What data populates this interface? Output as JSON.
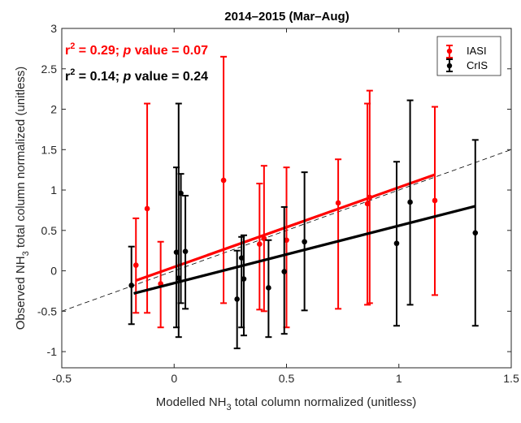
{
  "chart_data": {
    "type": "scatter",
    "title": "2014–2015 (Mar–Aug)",
    "xlabel": {
      "pre": "Modelled NH",
      "sub": "3",
      "post": " total column normalized (unitless)"
    },
    "ylabel": {
      "pre": "Observed NH",
      "sub": "3",
      "post": " total column normalized (unitless)"
    },
    "xlim": [
      -0.5,
      1.5
    ],
    "ylim": [
      -1.2,
      3
    ],
    "xticks": [
      -0.5,
      0,
      0.5,
      1,
      1.5
    ],
    "xtick_labels": [
      "-0.5",
      "0",
      "0.5",
      "1",
      "1.5"
    ],
    "yticks": [
      -1,
      -0.5,
      0,
      0.5,
      1,
      1.5,
      2,
      2.5,
      3
    ],
    "ytick_labels": [
      "-1",
      "-0.5",
      "0",
      "0.5",
      "1",
      "1.5",
      "2",
      "2.5",
      "3"
    ],
    "grid": false,
    "legend_position": "top-right",
    "one_to_one_line": {
      "from": [
        -0.5,
        -0.5
      ],
      "to": [
        1.5,
        1.5
      ]
    },
    "series": [
      {
        "name": "IASI",
        "color": "#ff0000",
        "stat": {
          "r2_label": "r",
          "r2_sup": "2",
          "r2_rest": " = 0.29; ",
          "p_italic": "p",
          "p_rest": " value = 0.07"
        },
        "fit": {
          "x": [
            -0.17,
            1.16
          ],
          "y": [
            -0.12,
            1.19
          ]
        },
        "points": [
          {
            "x": -0.17,
            "y": 0.07,
            "lo": -0.52,
            "hi": 0.65
          },
          {
            "x": -0.12,
            "y": 0.77,
            "lo": -0.52,
            "hi": 2.07
          },
          {
            "x": -0.06,
            "y": -0.16,
            "lo": -0.7,
            "hi": 0.36
          },
          {
            "x": 0.22,
            "y": 1.12,
            "lo": -0.4,
            "hi": 2.65
          },
          {
            "x": 0.38,
            "y": 0.33,
            "lo": -0.48,
            "hi": 1.08
          },
          {
            "x": 0.4,
            "y": 0.4,
            "lo": -0.5,
            "hi": 1.3
          },
          {
            "x": 0.5,
            "y": 0.38,
            "lo": -0.7,
            "hi": 1.28
          },
          {
            "x": 0.73,
            "y": 0.84,
            "lo": -0.47,
            "hi": 1.38
          },
          {
            "x": 0.86,
            "y": 0.83,
            "lo": -0.42,
            "hi": 2.07
          },
          {
            "x": 0.87,
            "y": 0.91,
            "lo": -0.4,
            "hi": 2.23
          },
          {
            "x": 1.16,
            "y": 0.87,
            "lo": -0.3,
            "hi": 2.03
          }
        ]
      },
      {
        "name": "CrIS",
        "color": "#000000",
        "stat": {
          "r2_label": "r",
          "r2_sup": "2",
          "r2_rest": " = 0.14; ",
          "p_italic": "p",
          "p_rest": " value = 0.24"
        },
        "fit": {
          "x": [
            -0.18,
            1.34
          ],
          "y": [
            -0.28,
            0.8
          ]
        },
        "points": [
          {
            "x": -0.19,
            "y": -0.18,
            "lo": -0.66,
            "hi": 0.3
          },
          {
            "x": 0.01,
            "y": 0.23,
            "lo": -0.7,
            "hi": 1.28
          },
          {
            "x": 0.02,
            "y": -0.09,
            "lo": -0.82,
            "hi": 2.07
          },
          {
            "x": 0.03,
            "y": 0.96,
            "lo": -0.4,
            "hi": 1.2
          },
          {
            "x": 0.05,
            "y": 0.24,
            "lo": -0.47,
            "hi": 0.93
          },
          {
            "x": 0.28,
            "y": -0.35,
            "lo": -0.96,
            "hi": 0.25
          },
          {
            "x": 0.3,
            "y": 0.16,
            "lo": -0.7,
            "hi": 0.42
          },
          {
            "x": 0.31,
            "y": -0.1,
            "lo": -0.8,
            "hi": 0.44
          },
          {
            "x": 0.42,
            "y": -0.21,
            "lo": -0.82,
            "hi": 0.38
          },
          {
            "x": 0.49,
            "y": -0.01,
            "lo": -0.78,
            "hi": 0.79
          },
          {
            "x": 0.58,
            "y": 0.36,
            "lo": -0.49,
            "hi": 1.22
          },
          {
            "x": 0.99,
            "y": 0.34,
            "lo": -0.68,
            "hi": 1.35
          },
          {
            "x": 1.05,
            "y": 0.85,
            "lo": -0.42,
            "hi": 2.11
          },
          {
            "x": 1.34,
            "y": 0.47,
            "lo": -0.68,
            "hi": 1.62
          }
        ]
      }
    ]
  }
}
